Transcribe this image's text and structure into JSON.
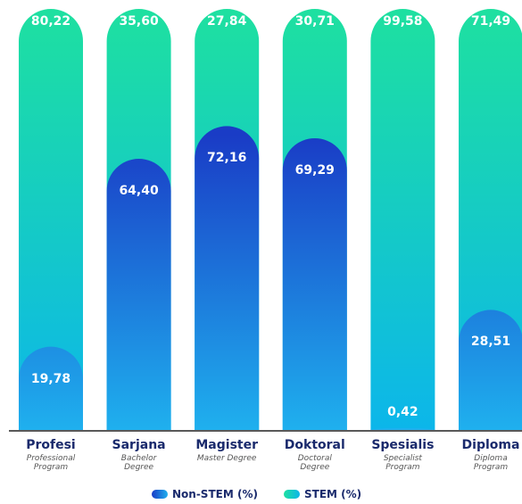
{
  "chart_data": {
    "type": "bar",
    "stacked": true,
    "categories": [
      "Profesi",
      "Sarjana",
      "Magister",
      "Doktoral",
      "Spesialis",
      "Diploma"
    ],
    "sublabels": [
      "Professional Program",
      "Bachelor Degree",
      "Master Degree",
      "Doctoral Degree",
      "Specialist Program",
      "Diploma Program"
    ],
    "series": [
      {
        "name": "Non-STEM (%)",
        "color": [
          "#1a3cc6",
          "#1fb0ee"
        ],
        "values": [
          19.78,
          64.4,
          72.16,
          69.29,
          0.42,
          28.51
        ],
        "value_labels": [
          "19,78",
          "64,40",
          "72,16",
          "69,29",
          "0,42",
          "28,51"
        ]
      },
      {
        "name": "STEM (%)",
        "color": [
          "#1ee0a0",
          "#0cb6ea"
        ],
        "values": [
          80.22,
          35.6,
          27.84,
          30.71,
          99.58,
          71.49
        ],
        "value_labels": [
          "80,22",
          "35,60",
          "27,84",
          "30,71",
          "99,58",
          "71,49"
        ]
      }
    ],
    "ylim": [
      0,
      100
    ]
  }
}
